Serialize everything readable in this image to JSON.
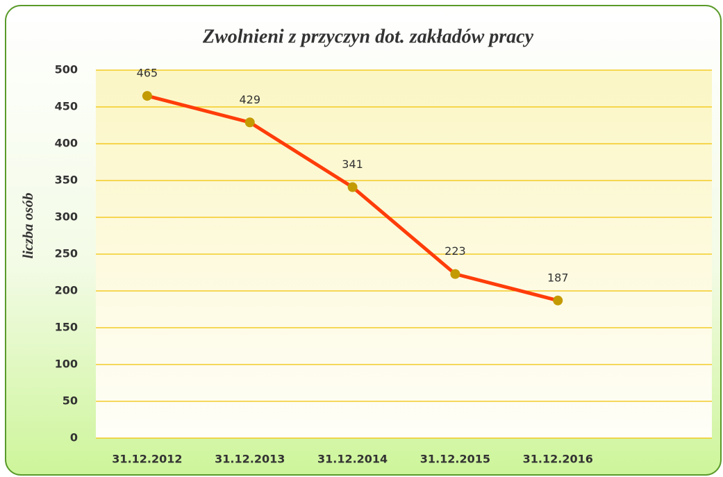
{
  "chart_data": {
    "type": "line",
    "title": "Zwolnieni z przyczyn dot. zakładów pracy",
    "y_label": "liczba osób",
    "categories": [
      "31.12.2012",
      "31.12.2013",
      "31.12.2014",
      "31.12.2015",
      "31.12.2016",
      null
    ],
    "series": [
      {
        "name": "Zwolnieni",
        "color": "#ff3d0a",
        "marker_color": "#c39a00",
        "values": [
          465,
          429,
          341,
          223,
          187,
          null
        ]
      }
    ],
    "ylim": [
      0,
      500
    ],
    "yticks": [
      0,
      50,
      100,
      150,
      200,
      250,
      300,
      350,
      400,
      450,
      500
    ],
    "grid": true
  }
}
